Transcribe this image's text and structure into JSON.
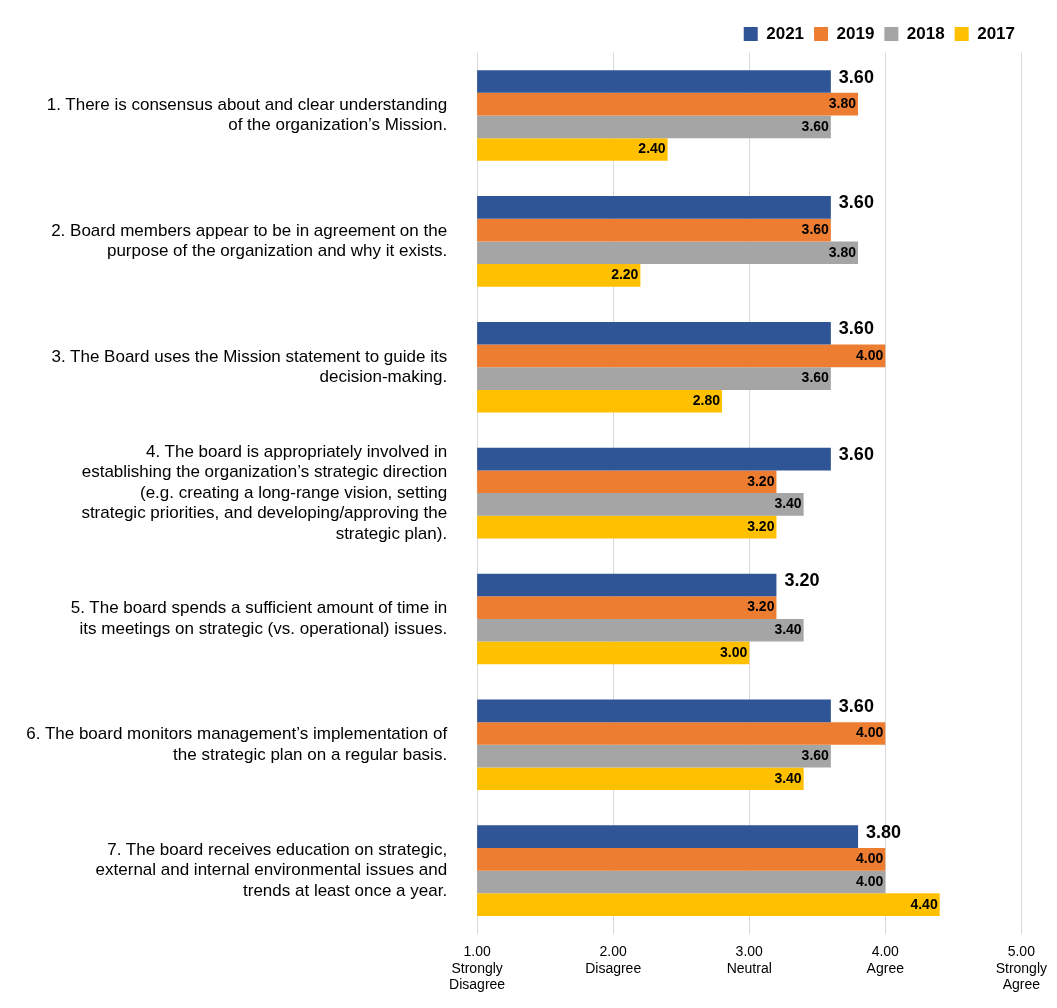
{
  "chart_data": {
    "type": "bar",
    "orientation": "horizontal",
    "categories": [
      "1. There is consensus about and clear understanding of the organization’s Mission.",
      "2. Board members appear to be in agreement on the purpose of the organization and why it exists.",
      "3. The Board uses the Mission statement to guide its decision-making.",
      "4. The board is appropriately involved in establishing the organization’s strategic direction (e.g. creating a long-range vision, setting strategic priorities, and developing/approving the strategic plan).",
      "5. The board spends a sufficient amount of time in its meetings on strategic (vs. operational) issues.",
      "6. The board monitors management’s implementation of the strategic plan on a regular basis.",
      "7. The board receives education on strategic, external and internal environmental issues and trends at least once a year."
    ],
    "series": [
      {
        "name": "2021",
        "color": "#2f5597",
        "values": [
          3.6,
          3.6,
          3.6,
          3.6,
          3.2,
          3.6,
          3.8
        ],
        "value_labels": [
          "3.60",
          "3.60",
          "3.60",
          "3.60",
          "3.20",
          "3.60",
          "3.80"
        ]
      },
      {
        "name": "2019",
        "color": "#ed7d31",
        "values": [
          3.8,
          3.6,
          4.0,
          3.2,
          3.2,
          4.0,
          4.0
        ],
        "value_labels": [
          "3.80",
          "3.60",
          "4.00",
          "3.20",
          "3.20",
          "4.00",
          "4.00"
        ]
      },
      {
        "name": "2018",
        "color": "#a5a5a5",
        "values": [
          3.6,
          3.8,
          3.6,
          3.4,
          3.4,
          3.6,
          4.0
        ],
        "value_labels": [
          "3.60",
          "3.80",
          "3.60",
          "3.40",
          "3.40",
          "3.60",
          "4.00"
        ]
      },
      {
        "name": "2017",
        "color": "#ffc000",
        "values": [
          2.4,
          2.2,
          2.8,
          3.2,
          3.0,
          3.4,
          4.4
        ],
        "value_labels": [
          "2.40",
          "2.20",
          "2.80",
          "3.20",
          "3.00",
          "3.40",
          "4.40"
        ]
      }
    ],
    "xlim": [
      1,
      5
    ],
    "xticks": [
      {
        "value": 1,
        "label": "1.00\nStrongly\nDisagree"
      },
      {
        "value": 2,
        "label": "2.00\nDisagree"
      },
      {
        "value": 3,
        "label": "3.00\nNeutral"
      },
      {
        "value": 4,
        "label": "4.00\nAgree"
      },
      {
        "value": 5,
        "label": "5.00\nStrongly\nAgree"
      }
    ],
    "grid": "x",
    "legend": "top"
  }
}
